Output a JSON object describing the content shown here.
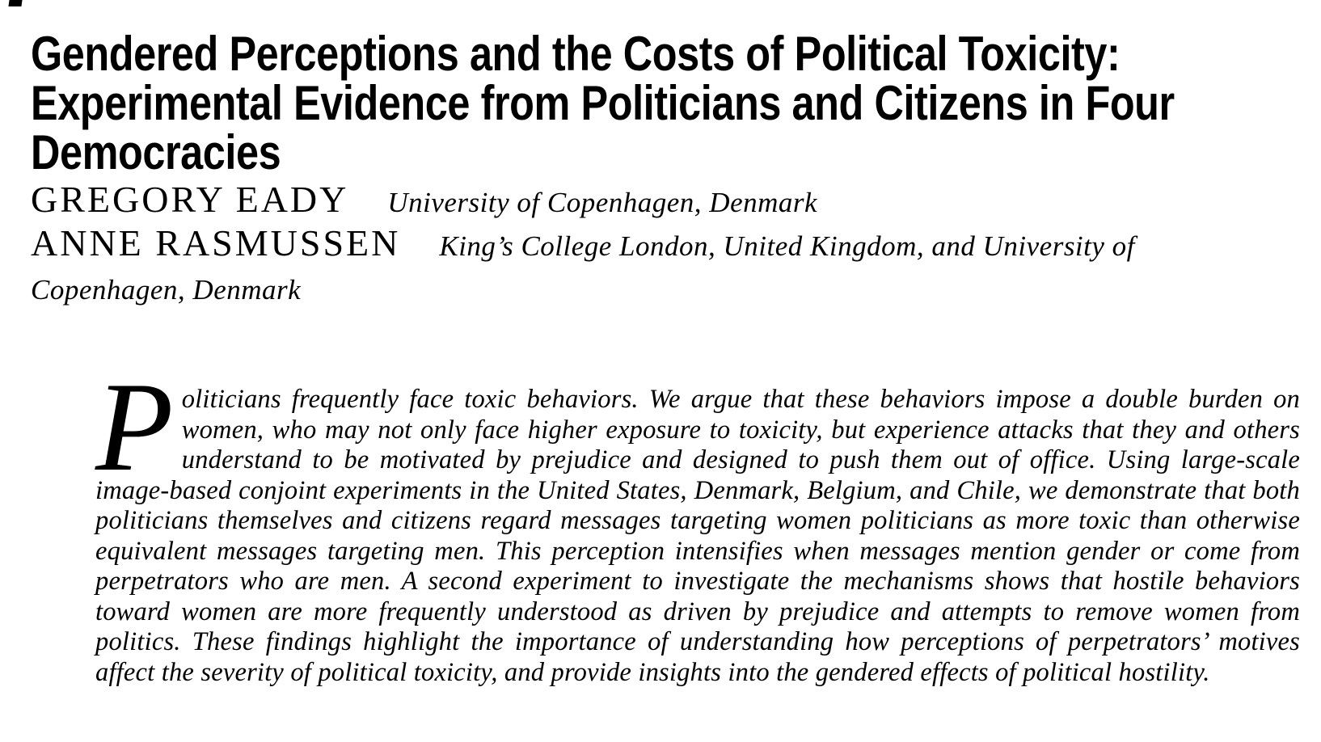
{
  "page": {
    "background_color": "#ffffff",
    "text_color": "#000000"
  },
  "title": {
    "lines": [
      "Gendered Perceptions and the Costs of Political Toxicity:",
      "Experimental Evidence from Politicians and Citizens in Four",
      "Democracies"
    ]
  },
  "authors": [
    {
      "name": "GREGORY EADY",
      "affiliation": "University of Copenhagen, Denmark"
    },
    {
      "name": "ANNE RASMUSSEN",
      "affiliation": "King’s College London, United Kingdom, and University of Copenhagen, Denmark"
    }
  ],
  "abstract": {
    "drop_cap": "P",
    "text": "oliticians frequently face toxic behaviors. We argue that these behaviors impose a double burden on women, who may not only face higher exposure to toxicity, but experience attacks that they and others understand to be motivated by prejudice and designed to push them out of office. Using large-scale image-based conjoint experiments in the United States, Denmark, Belgium, and Chile, we demonstrate that both politicians themselves and citizens regard messages targeting women politicians as more toxic than otherwise equivalent messages targeting men. This perception intensifies when messages mention gender or come from perpetrators who are men. A second experiment to investigate the mechanisms shows that hostile behaviors toward women are more frequently understood as driven by prejudice and attempts to remove women from politics. These findings highlight the importance of understanding how perceptions of perpetrators’ motives affect the severity of political toxicity, and provide insights into the gendered effects of political hostility."
  }
}
